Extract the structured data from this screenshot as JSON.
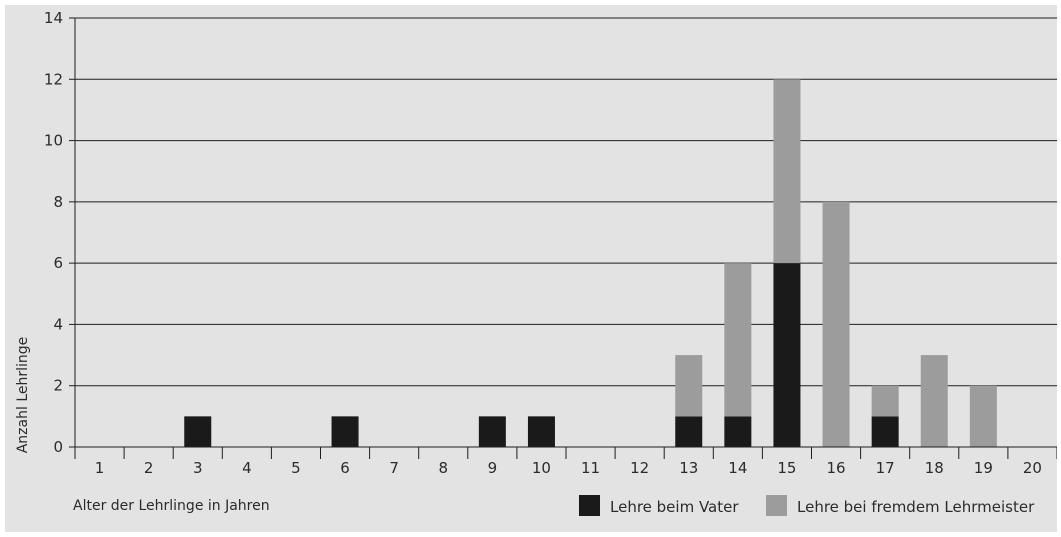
{
  "chart_data": {
    "type": "bar",
    "stacked": true,
    "categories": [
      "1",
      "2",
      "3",
      "4",
      "5",
      "6",
      "7",
      "8",
      "9",
      "10",
      "11",
      "12",
      "13",
      "14",
      "15",
      "16",
      "17",
      "18",
      "19",
      "20"
    ],
    "series": [
      {
        "name": "Lehre beim Vater",
        "color": "#1a1a1a",
        "values": [
          0,
          0,
          1,
          0,
          0,
          1,
          0,
          0,
          1,
          1,
          0,
          0,
          1,
          1,
          6,
          0,
          1,
          0,
          0,
          0
        ]
      },
      {
        "name": "Lehre bei fremdem Lehrmeister",
        "color": "#9c9c9c",
        "values": [
          0,
          0,
          0,
          0,
          0,
          0,
          0,
          0,
          0,
          0,
          0,
          0,
          2,
          5,
          6,
          8,
          1,
          3,
          2,
          0
        ]
      }
    ],
    "xlabel": "Alter der Lehrlinge in Jahren",
    "ylabel": "Anzahl Lehrlinge",
    "ylim": [
      0,
      14
    ],
    "yticks": [
      "0",
      "2",
      "4",
      "6",
      "8",
      "10",
      "12",
      "14"
    ],
    "grid": true,
    "legend_position": "bottom-right"
  }
}
